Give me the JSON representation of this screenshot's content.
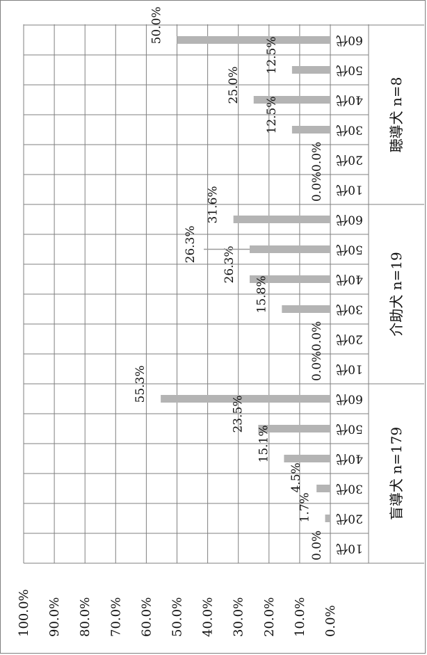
{
  "chart_data": {
    "type": "bar",
    "orientation": "horizontal-bars-rotated-page",
    "title": "",
    "xlabel": "",
    "ylabel": "",
    "ylim": [
      0,
      100
    ],
    "yticks": [
      "0.0%",
      "10.0%",
      "20.0%",
      "30.0%",
      "40.0%",
      "50.0%",
      "60.0%",
      "70.0%",
      "80.0%",
      "90.0%",
      "100.0%"
    ],
    "grid": true,
    "legend": "none",
    "bar_color": "#b4b4b4",
    "grid_color": "#7f7f7f",
    "groups": [
      {
        "name": "盲導犬 n=179",
        "categories": [
          "10代",
          "20代",
          "30代",
          "40代",
          "50代",
          "60代"
        ],
        "values": [
          0.0,
          1.7,
          4.5,
          15.1,
          23.5,
          55.3
        ],
        "labels": [
          "0.0%",
          "1.7%",
          "4.5%",
          "15.1%",
          "23.5%",
          "55.3%"
        ]
      },
      {
        "name": "介助犬 n=19",
        "categories": [
          "10代",
          "20代",
          "30代",
          "40代",
          "50代",
          "60代"
        ],
        "values": [
          0.0,
          0.0,
          15.8,
          26.3,
          26.3,
          31.6
        ],
        "labels": [
          "0.0%",
          "0.0%",
          "15.8%",
          "26.3%",
          "26.3%",
          "31.6%"
        ]
      },
      {
        "name": "聴導犬 n=8",
        "categories": [
          "10代",
          "20代",
          "30代",
          "40代",
          "50代",
          "60代"
        ],
        "values": [
          0.0,
          0.0,
          12.5,
          25.0,
          12.5,
          50.0
        ],
        "labels": [
          "0.0%",
          "0.0%",
          "12.5%",
          "25.0%",
          "12.5%",
          "50.0%"
        ]
      }
    ]
  }
}
